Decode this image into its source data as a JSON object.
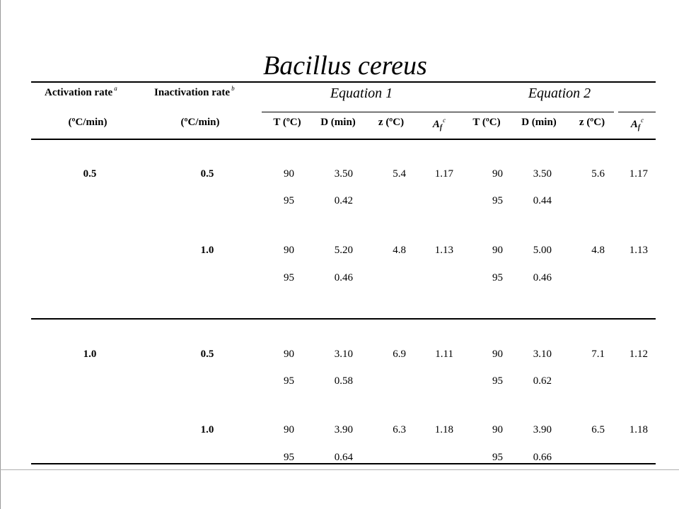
{
  "title": "Bacillus cereus",
  "headers": {
    "activation": "Activation rate",
    "activation_note": "a",
    "inactivation": "Inactivation rate",
    "inactivation_note": "b",
    "activation_unit": "(ºC/min)",
    "inactivation_unit": "(ºC/min)",
    "equation1": "Equation 1",
    "equation2": "Equation 2",
    "t": "T (ºC)",
    "d": "D (min)",
    "z": "z (ºC)",
    "af_main": "A",
    "af_sub": "f",
    "af_note": "c"
  },
  "groups": [
    {
      "activation": "0.5",
      "subgroups": [
        {
          "inactivation": "0.5",
          "rows": [
            {
              "t1": "90",
              "d1": "3.50",
              "z1": "5.4",
              "af1": "1.17",
              "t2": "90",
              "d2": "3.50",
              "z2": "5.6",
              "af2": "1.17"
            },
            {
              "t1": "95",
              "d1": "0.42",
              "z1": "",
              "af1": "",
              "t2": "95",
              "d2": "0.44",
              "z2": "",
              "af2": ""
            }
          ]
        },
        {
          "inactivation": "1.0",
          "rows": [
            {
              "t1": "90",
              "d1": "5.20",
              "z1": "4.8",
              "af1": "1.13",
              "t2": "90",
              "d2": "5.00",
              "z2": "4.8",
              "af2": "1.13"
            },
            {
              "t1": "95",
              "d1": "0.46",
              "z1": "",
              "af1": "",
              "t2": "95",
              "d2": "0.46",
              "z2": "",
              "af2": ""
            }
          ]
        }
      ]
    },
    {
      "activation": "1.0",
      "subgroups": [
        {
          "inactivation": "0.5",
          "rows": [
            {
              "t1": "90",
              "d1": "3.10",
              "z1": "6.9",
              "af1": "1.11",
              "t2": "90",
              "d2": "3.10",
              "z2": "7.1",
              "af2": "1.12"
            },
            {
              "t1": "95",
              "d1": "0.58",
              "z1": "",
              "af1": "",
              "t2": "95",
              "d2": "0.62",
              "z2": "",
              "af2": ""
            }
          ]
        },
        {
          "inactivation": "1.0",
          "rows": [
            {
              "t1": "90",
              "d1": "3.90",
              "z1": "6.3",
              "af1": "1.18",
              "t2": "90",
              "d2": "3.90",
              "z2": "6.5",
              "af2": "1.18"
            },
            {
              "t1": "95",
              "d1": "0.64",
              "z1": "",
              "af1": "",
              "t2": "95",
              "d2": "0.66",
              "z2": "",
              "af2": ""
            }
          ]
        }
      ]
    }
  ]
}
